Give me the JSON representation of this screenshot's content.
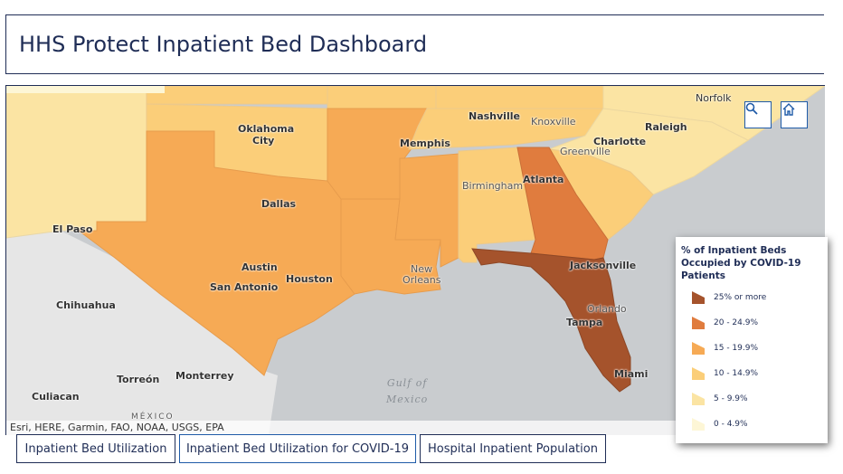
{
  "header": {
    "title": "HHS Protect Inpatient Bed Dashboard"
  },
  "map": {
    "attribution": "Esri, HERE, Garmin, FAO, NOAA, USGS, EPA",
    "water_label_line1": "Gulf of",
    "water_label_line2": "Mexico",
    "mexico_label": "MÉXICO",
    "cities": {
      "norfolk": "Norfolk",
      "oklahoma_city_1": "Oklahoma",
      "oklahoma_city_2": "City",
      "nashville": "Nashville",
      "knoxville": "Knoxville",
      "raleigh": "Raleigh",
      "memphis": "Memphis",
      "charlotte": "Charlotte",
      "greenville": "Greenville",
      "atlanta": "Atlanta",
      "birmingham": "Birmingham",
      "dallas": "Dallas",
      "el_paso": "El Paso",
      "austin": "Austin",
      "houston": "Houston",
      "san_antonio": "San Antonio",
      "new_orleans_1": "New",
      "new_orleans_2": "Orleans",
      "jacksonville": "Jacksonville",
      "orlando": "Orlando",
      "tampa": "Tampa",
      "miami": "Miami",
      "chihuahua": "Chihuahua",
      "torreon": "Torreón",
      "monterrey": "Monterrey",
      "culiacan": "Culiacan"
    },
    "colors": {
      "c0": "#fdf6d6",
      "c5": "#fbe4a3",
      "c10": "#fbce79",
      "c15": "#f6aa55",
      "c20": "#e07c3e",
      "c25": "#a5532c"
    }
  },
  "legend": {
    "title": "% of Inpatient Beds Occupied by COVID-19 Patients",
    "items": [
      {
        "label": "25% or more",
        "color": "#a5532c"
      },
      {
        "label": "20 - 24.9%",
        "color": "#e07c3e"
      },
      {
        "label": "15 - 19.9%",
        "color": "#f6aa55"
      },
      {
        "label": "10 - 14.9%",
        "color": "#fbce79"
      },
      {
        "label": "5 - 9.9%",
        "color": "#fbe4a3"
      },
      {
        "label": "0 - 4.9%",
        "color": "#fdf6d6"
      }
    ]
  },
  "tabs": [
    {
      "label": "Inpatient Bed Utilization"
    },
    {
      "label": "Inpatient Bed Utilization for COVID-19"
    },
    {
      "label": "Hospital Inpatient Population"
    }
  ],
  "toolbar": {
    "search_icon": "search-icon",
    "home_icon": "home-icon"
  }
}
